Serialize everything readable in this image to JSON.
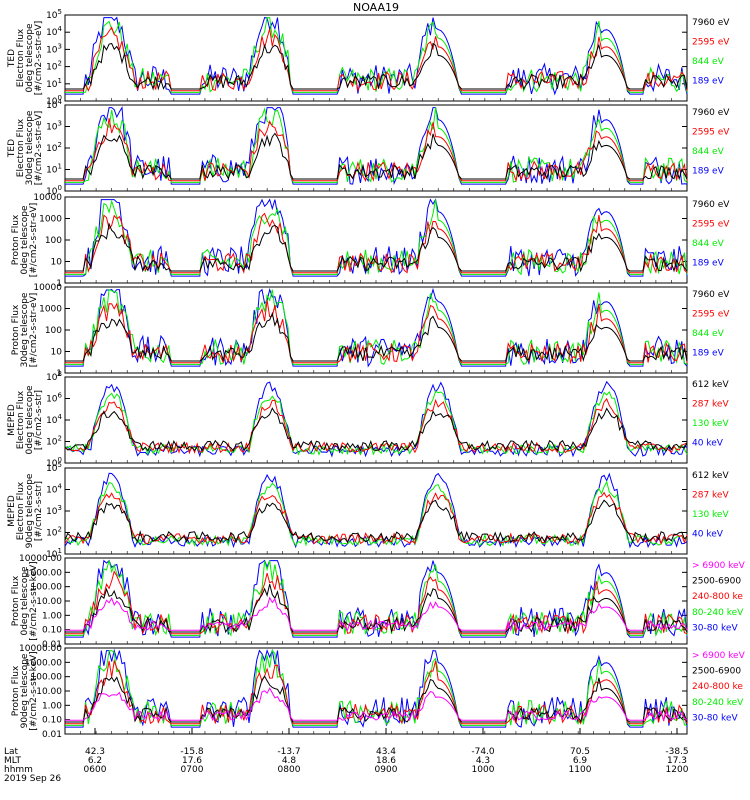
{
  "title": "NOAA19",
  "colors": {
    "black": "#000000",
    "red": "#ff0000",
    "green": "#00ee00",
    "blue": "#0000ff",
    "magenta": "#ff00ff"
  },
  "chart_data": {
    "type": "line",
    "x_time_ticks": [
      "0600",
      "0700",
      "0800",
      "0900",
      "1000",
      "1100",
      "1200"
    ],
    "x_lat_ticks": [
      "42.3",
      "-15.8",
      "-13.7",
      "43.4",
      "-74.0",
      "70.5",
      "-38.5"
    ],
    "x_mlt_ticks": [
      "6.2",
      "17.6",
      "4.8",
      "18.6",
      "4.3",
      "6.9",
      "17.3"
    ],
    "x_row_labels": [
      "Lat",
      "MLT",
      "hhmm"
    ],
    "date": "2019 Sep 26",
    "panels": [
      {
        "ylabel": [
          "TED",
          "Electron Flux",
          "0deg telescope",
          "[#/cm2-s-str-eV]"
        ],
        "yticks": [
          "10^0",
          "10^1",
          "10^2",
          "10^3",
          "10^4",
          "10^5"
        ],
        "legend": [
          {
            "text": "7960 eV",
            "color": "black"
          },
          {
            "text": "2595 eV",
            "color": "red"
          },
          {
            "text": "844 eV",
            "color": "green"
          },
          {
            "text": "189 eV",
            "color": "blue"
          }
        ]
      },
      {
        "ylabel": [
          "TED",
          "Electron Flux",
          "30deg telescope",
          "[#/cm2-s-str-eV]"
        ],
        "yticks": [
          "10^0",
          "10^1",
          "10^2",
          "10^3",
          "10^4"
        ],
        "legend": [
          {
            "text": "7960 eV",
            "color": "black"
          },
          {
            "text": "2595 eV",
            "color": "red"
          },
          {
            "text": "844 eV",
            "color": "green"
          },
          {
            "text": "189 eV",
            "color": "blue"
          }
        ]
      },
      {
        "ylabel": [
          "Proton Flux",
          "0deg telescope",
          "[#/cm2-s-str-eV]"
        ],
        "yticks": [
          "1",
          "10",
          "100",
          "1000",
          "10000"
        ],
        "legend": [
          {
            "text": "7960 eV",
            "color": "black"
          },
          {
            "text": "2595 eV",
            "color": "red"
          },
          {
            "text": "844 eV",
            "color": "green"
          },
          {
            "text": "189 eV",
            "color": "blue"
          }
        ]
      },
      {
        "ylabel": [
          "Proton Flux",
          "30deg telescope",
          "[#/cm2-s-str-eV]"
        ],
        "yticks": [
          "1",
          "10",
          "100",
          "1000",
          "10000"
        ],
        "legend": [
          {
            "text": "7960 eV",
            "color": "black"
          },
          {
            "text": "2595 eV",
            "color": "red"
          },
          {
            "text": "844 eV",
            "color": "green"
          },
          {
            "text": "189 eV",
            "color": "blue"
          }
        ]
      },
      {
        "ylabel": [
          "MEPED",
          "Electron Flux",
          "0deg telescope",
          "[#/cm2-s-str]"
        ],
        "yticks": [
          "10^0",
          "10^2",
          "10^4",
          "10^6",
          "10^8"
        ],
        "legend": [
          {
            "text": "612 keV",
            "color": "black"
          },
          {
            "text": "287 keV",
            "color": "red"
          },
          {
            "text": "130 keV",
            "color": "green"
          },
          {
            "text": "40 keV",
            "color": "blue"
          }
        ]
      },
      {
        "ylabel": [
          "MEPED",
          "Electron Flux",
          "90deg telescope",
          "[#/cm2-s-str]"
        ],
        "yticks": [
          "10^1",
          "10^2",
          "10^3",
          "10^4",
          "10^5"
        ],
        "legend": [
          {
            "text": "612 keV",
            "color": "black"
          },
          {
            "text": "287 keV",
            "color": "red"
          },
          {
            "text": "130 keV",
            "color": "green"
          },
          {
            "text": "40 keV",
            "color": "blue"
          }
        ]
      },
      {
        "ylabel": [
          "Proton Flux",
          "0deg telescope",
          "[#/cm2-s-str-keV]"
        ],
        "yticks": [
          "0.01",
          "0.10",
          "1.00",
          "10.00",
          "100.00",
          "1000.00",
          "10000.00"
        ],
        "legend": [
          {
            "text": "> 6900 keV",
            "color": "magenta"
          },
          {
            "text": "2500-6900",
            "color": "black"
          },
          {
            "text": "240-800 ke",
            "color": "red"
          },
          {
            "text": "80-240 keV",
            "color": "green"
          },
          {
            "text": "30-80 keV",
            "color": "blue"
          }
        ]
      },
      {
        "ylabel": [
          "Proton Flux",
          "90deg telescope",
          "[#/cm2-s-str-keV]"
        ],
        "yticks": [
          "0.01",
          "0.10",
          "1.00",
          "10.00",
          "100.00",
          "1000.00",
          "10000.00"
        ],
        "legend": [
          {
            "text": "> 6900 keV",
            "color": "magenta"
          },
          {
            "text": "2500-6900",
            "color": "black"
          },
          {
            "text": "240-800 ke",
            "color": "red"
          },
          {
            "text": "80-240 keV",
            "color": "green"
          },
          {
            "text": "30-80 keV",
            "color": "blue"
          }
        ]
      }
    ]
  }
}
